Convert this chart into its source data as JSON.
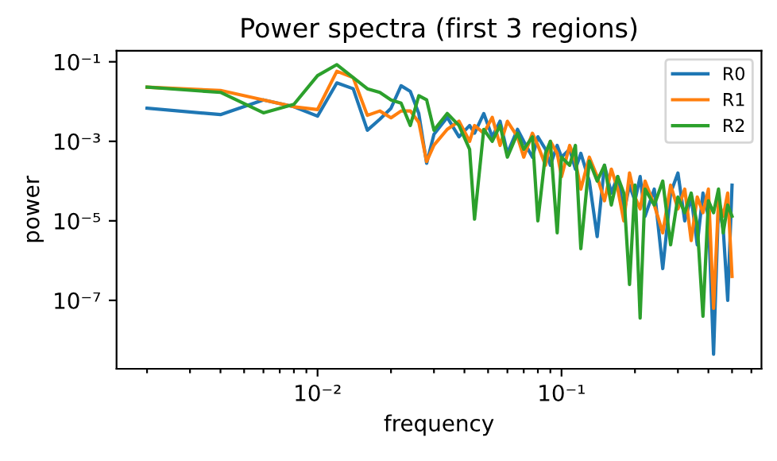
{
  "chart_data": {
    "type": "line",
    "title": "Power spectra (first 3 regions)",
    "xlabel": "frequency",
    "ylabel": "power",
    "log": "xy",
    "grid": false,
    "legend": "top right",
    "marker": "none",
    "line_style": "solid",
    "x": [
      0.002,
      0.004,
      0.006,
      0.008,
      0.01,
      0.012,
      0.014,
      0.016,
      0.018,
      0.02,
      0.022,
      0.024,
      0.026,
      0.028,
      0.03,
      0.034,
      0.038,
      0.042,
      0.044,
      0.048,
      0.052,
      0.056,
      0.06,
      0.066,
      0.07,
      0.076,
      0.08,
      0.086,
      0.09,
      0.096,
      0.1,
      0.108,
      0.114,
      0.12,
      0.13,
      0.14,
      0.15,
      0.16,
      0.17,
      0.18,
      0.19,
      0.2,
      0.21,
      0.22,
      0.24,
      0.26,
      0.28,
      0.3,
      0.32,
      0.34,
      0.36,
      0.38,
      0.4,
      0.42,
      0.44,
      0.46,
      0.48,
      0.5
    ],
    "xlim": [
      0.0015,
      0.66
    ],
    "xticks": [
      {
        "value": 0.002,
        "label": null
      },
      {
        "value": 0.003,
        "label": null
      },
      {
        "value": 0.004,
        "label": null
      },
      {
        "value": 0.005,
        "label": null
      },
      {
        "value": 0.006,
        "label": null
      },
      {
        "value": 0.007,
        "label": null
      },
      {
        "value": 0.008,
        "label": null
      },
      {
        "value": 0.009,
        "label": null
      },
      {
        "value": 0.01,
        "label": "10⁻²"
      },
      {
        "value": 0.02,
        "label": null
      },
      {
        "value": 0.03,
        "label": null
      },
      {
        "value": 0.04,
        "label": null
      },
      {
        "value": 0.05,
        "label": null
      },
      {
        "value": 0.06,
        "label": null
      },
      {
        "value": 0.07,
        "label": null
      },
      {
        "value": 0.08,
        "label": null
      },
      {
        "value": 0.09,
        "label": null
      },
      {
        "value": 0.1,
        "label": "10⁻¹"
      },
      {
        "value": 0.2,
        "label": null
      },
      {
        "value": 0.3,
        "label": null
      },
      {
        "value": 0.4,
        "label": null
      },
      {
        "value": 0.5,
        "label": null
      },
      {
        "value": 0.6,
        "label": null
      }
    ],
    "ylim": [
      1.9e-09,
      0.19
    ],
    "yticks": [
      {
        "value": 1e-07,
        "label": "10⁻⁷"
      },
      {
        "value": 1e-05,
        "label": "10⁻⁵"
      },
      {
        "value": 0.001,
        "label": "10⁻³"
      },
      {
        "value": 0.1,
        "label": "10⁻¹"
      }
    ],
    "series": [
      {
        "name": "R0",
        "color": "#1f77b4",
        "values": [
          0.0068,
          0.0047,
          0.011,
          0.0074,
          0.0043,
          0.0295,
          0.021,
          0.0019,
          0.0036,
          0.0068,
          0.025,
          0.018,
          0.005,
          0.00028,
          0.0015,
          0.004,
          0.0013,
          0.0025,
          0.0016,
          0.005,
          0.0013,
          0.0032,
          0.0005,
          0.002,
          0.001,
          0.0004,
          0.0013,
          0.00063,
          0.00025,
          0.00079,
          0.0004,
          0.00063,
          0.0002,
          0.0005,
          0.0001,
          4e-06,
          0.00025,
          5e-05,
          0.00013,
          1.6e-05,
          7.9e-05,
          3.2e-05,
          0.00013,
          1.3e-05,
          6.3e-05,
          6.3e-07,
          5e-05,
          0.00016,
          1e-05,
          4e-05,
          2.5e-06,
          5e-05,
          1.3e-05,
          4.4e-09,
          2.5e-05,
          6.3e-06,
          1e-07,
          7.9e-05
        ]
      },
      {
        "name": "R1",
        "color": "#ff7f0e",
        "values": [
          0.023,
          0.019,
          0.011,
          0.0074,
          0.0063,
          0.058,
          0.04,
          0.0045,
          0.0058,
          0.0039,
          0.0058,
          0.0058,
          0.003,
          0.00031,
          0.0008,
          0.002,
          0.0032,
          0.001,
          0.0025,
          0.0016,
          0.004,
          0.00079,
          0.0032,
          0.0013,
          0.0004,
          0.0016,
          0.00079,
          0.00025,
          0.001,
          0.0005,
          0.00013,
          0.00079,
          0.00032,
          6.3e-05,
          0.0004,
          0.00013,
          3.2e-05,
          0.0002,
          6.3e-05,
          1e-05,
          0.00016,
          4e-05,
          2e-05,
          0.0001,
          2.5e-05,
          5e-06,
          7.9e-05,
          2e-05,
          6.3e-05,
          3.2e-06,
          4e-05,
          1.6e-05,
          6.3e-05,
          6.3e-08,
          3.2e-05,
          1.3e-05,
          5e-05,
          4e-07
        ]
      },
      {
        "name": "R2",
        "color": "#2ca02c",
        "values": [
          0.023,
          0.017,
          0.0052,
          0.0085,
          0.045,
          0.085,
          0.04,
          0.021,
          0.017,
          0.011,
          0.0091,
          0.0025,
          0.014,
          0.011,
          0.0019,
          0.005,
          0.0025,
          0.00063,
          1.1e-05,
          0.002,
          0.001,
          0.0025,
          0.0004,
          0.0016,
          0.00063,
          0.0013,
          1e-05,
          0.0005,
          0.001,
          5e-06,
          0.0004,
          0.00025,
          0.00079,
          2e-06,
          0.00032,
          0.0001,
          0.00025,
          2.5e-05,
          0.00013,
          5e-05,
          2.5e-07,
          7.9e-05,
          3.6e-08,
          6.3e-05,
          2.5e-05,
          0.0001,
          2.5e-06,
          4e-05,
          1.6e-05,
          5e-05,
          7.9e-06,
          4e-08,
          3.2e-05,
          1.6e-05,
          6.3e-05,
          5e-06,
          2.5e-05,
          1.3e-05
        ]
      }
    ]
  }
}
